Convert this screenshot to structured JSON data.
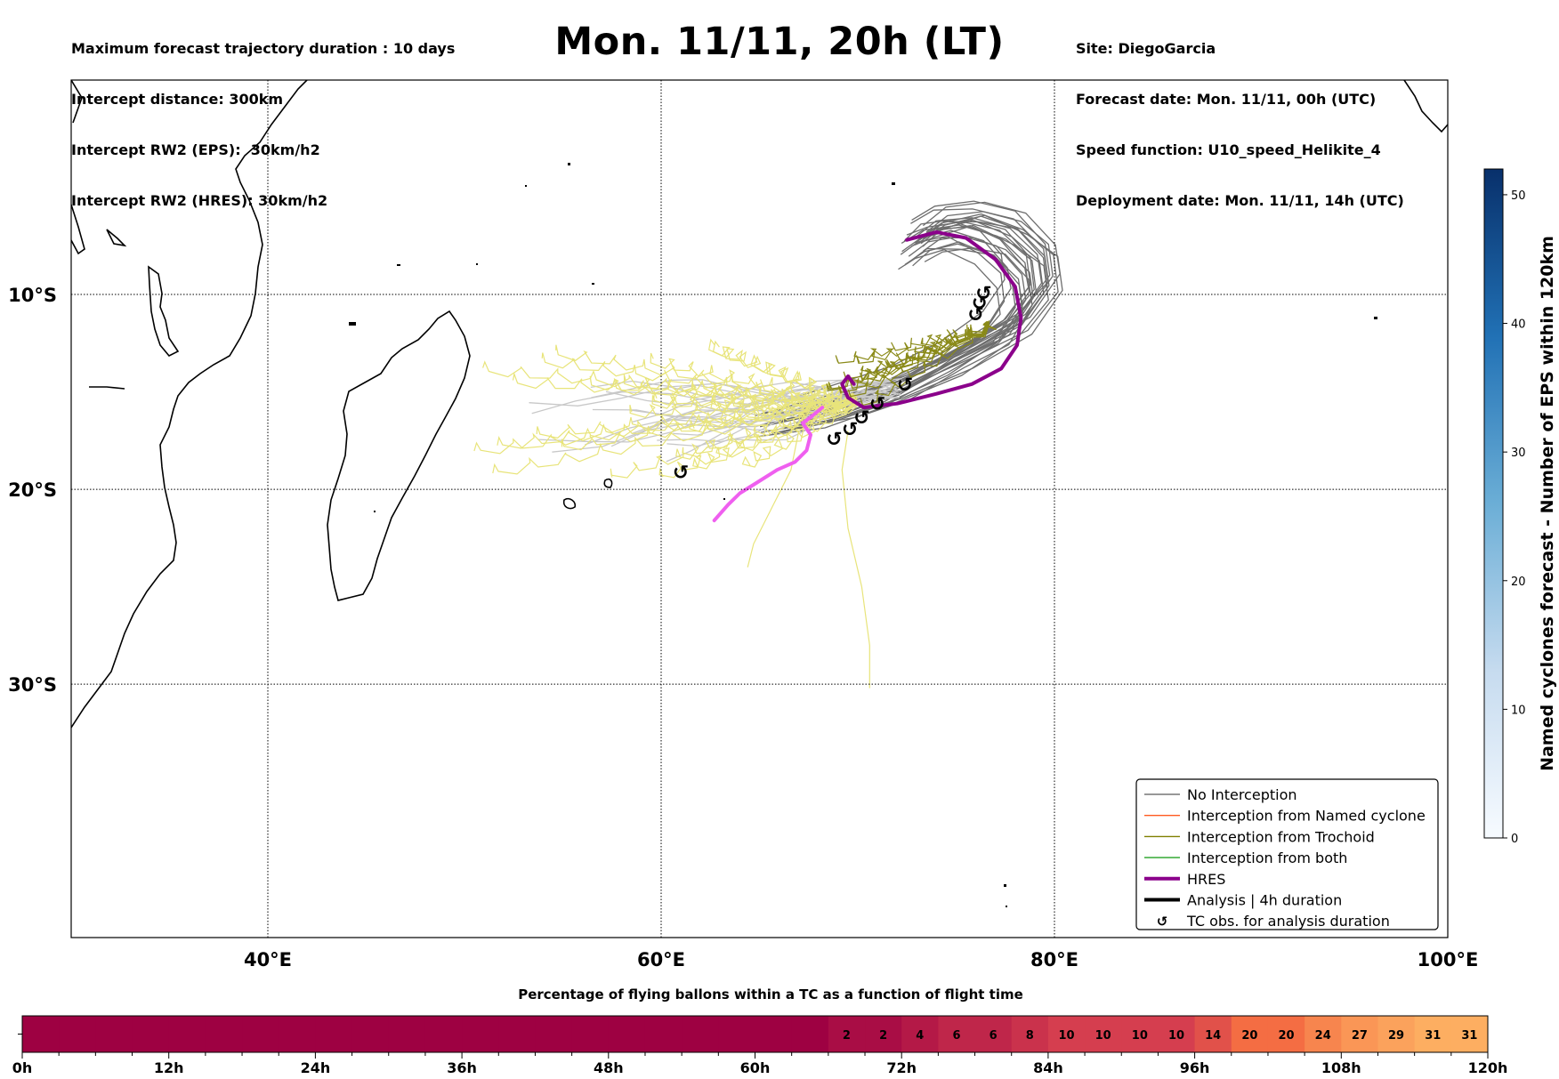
{
  "header_left": [
    "Maximum forecast trajectory duration : 10 days",
    "Intercept distance: 300km",
    "Intercept RW2 (EPS):  30km/h2",
    "Intercept RW2 (HRES): 30km/h2"
  ],
  "title": "Mon. 11/11, 20h (LT)",
  "header_right": [
    "Site: DiegoGarcia",
    "Forecast date: Mon. 11/11, 00h (UTC)",
    "Speed function: U10_speed_Helikite_4",
    "Deployment date: Mon. 11/11, 14h (UTC)"
  ],
  "chart_data": [
    {
      "type": "line",
      "map_extent": {
        "lon": [
          30,
          100
        ],
        "lat": [
          -43,
          1
        ]
      },
      "lon_ticks": [
        {
          "value": 40,
          "label": "40°E"
        },
        {
          "value": 60,
          "label": "60°E"
        },
        {
          "value": 80,
          "label": "80°E"
        },
        {
          "value": 100,
          "label": "100°E"
        }
      ],
      "lat_ticks": [
        {
          "value": -10,
          "label": "10°S"
        },
        {
          "value": -20,
          "label": "20°S"
        },
        {
          "value": -30,
          "label": "30°S"
        }
      ],
      "grid": true,
      "legend_position": "lower-right",
      "legend": [
        {
          "label": "No Interception",
          "color": "#777777",
          "style": "thin-line"
        },
        {
          "label": "Interception from Named cyclone",
          "color": "#ff5a1f",
          "style": "thin-line"
        },
        {
          "label": "Interception from Trochoid",
          "color": "#808000",
          "style": "thin-line"
        },
        {
          "label": "Interception from both",
          "color": "#22a022",
          "style": "thin-line"
        },
        {
          "label": "HRES",
          "color": "#8b008b",
          "style": "thick-line"
        },
        {
          "label": "Analysis | 4h duration",
          "color": "#000000",
          "style": "thick-line"
        },
        {
          "label": "TC obs. for analysis duration",
          "color": "#000000",
          "style": "marker"
        }
      ],
      "hres_track": [
        [
          72.5,
          -7.2
        ],
        [
          74,
          -6.8
        ],
        [
          75.5,
          -7.1
        ],
        [
          77,
          -8.2
        ],
        [
          78,
          -9.6
        ],
        [
          78.3,
          -11.2
        ],
        [
          78.1,
          -12.6
        ],
        [
          77.3,
          -13.8
        ],
        [
          75.8,
          -14.6
        ],
        [
          74,
          -15.1
        ],
        [
          72,
          -15.6
        ],
        [
          70.3,
          -15.8
        ],
        [
          69.5,
          -15.3
        ],
        [
          69.2,
          -14.6
        ],
        [
          69.5,
          -14.2
        ],
        [
          69.8,
          -14.6
        ]
      ],
      "analysis_track": [
        [
          68.2,
          -15.8
        ],
        [
          67.6,
          -16.3
        ],
        [
          67.2,
          -16.6
        ],
        [
          67.6,
          -17.2
        ],
        [
          67.4,
          -18.0
        ],
        [
          66.8,
          -18.6
        ],
        [
          65.9,
          -19.0
        ],
        [
          64.8,
          -19.7
        ],
        [
          64.0,
          -20.2
        ],
        [
          63.4,
          -20.8
        ],
        [
          62.7,
          -21.6
        ]
      ],
      "tc_obs": [
        [
          61,
          -19.1
        ],
        [
          68.8,
          -17.4
        ],
        [
          69.6,
          -16.9
        ],
        [
          70.2,
          -16.3
        ],
        [
          71.0,
          -15.6
        ],
        [
          72.4,
          -14.6
        ],
        [
          76,
          -11.0
        ],
        [
          76.2,
          -10.4
        ],
        [
          76.4,
          -9.9
        ]
      ],
      "colorbar": {
        "label": "Named cyclones forecast - Number of EPS within 120km",
        "min": 0,
        "max": 52,
        "ticks": [
          0,
          10,
          20,
          30,
          40,
          50
        ]
      }
    },
    {
      "type": "bar",
      "title": "Percentage of flying ballons within a TC as a function of flight time",
      "x_ticks": [
        "0h",
        "12h",
        "24h",
        "36h",
        "48h",
        "60h",
        "72h",
        "84h",
        "96h",
        "108h",
        "120h"
      ],
      "x_range_hours": [
        0,
        120
      ],
      "bin_hours": 3,
      "values": [
        0,
        0,
        0,
        0,
        0,
        0,
        0,
        0,
        0,
        0,
        0,
        0,
        0,
        0,
        0,
        0,
        0,
        0,
        0,
        0,
        0,
        0,
        2,
        2,
        4,
        6,
        6,
        8,
        10,
        10,
        10,
        10,
        14,
        20,
        20,
        24,
        27,
        29,
        31,
        31
      ]
    }
  ]
}
